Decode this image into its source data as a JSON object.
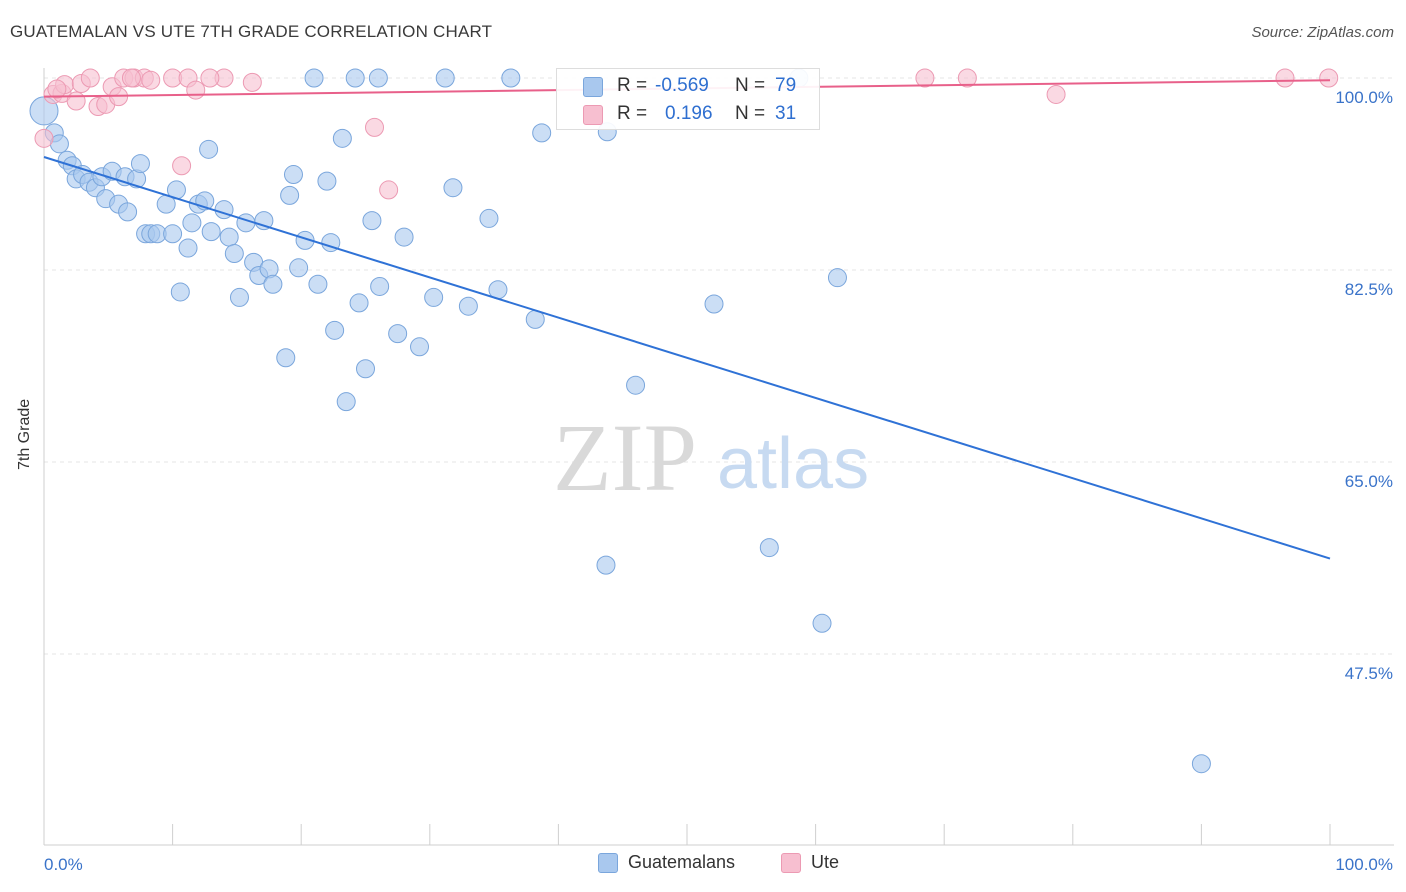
{
  "header": {
    "title": "GUATEMALAN VS UTE 7TH GRADE CORRELATION CHART",
    "source": "Source: ZipAtlas.com"
  },
  "watermark": {
    "part1": "ZIP",
    "part2": "atlas"
  },
  "colors": {
    "blue_fill": "#a9c8ee",
    "blue_stroke": "#7aa6dc",
    "blue_line": "#2f72d6",
    "pink_fill": "#f7bfd0",
    "pink_stroke": "#ec9ab3",
    "pink_line": "#e8608a",
    "tick_label": "#3a73c9",
    "grid": "#e4e4e4"
  },
  "stats": {
    "r_label": "R =",
    "n_label": "N =",
    "rows": [
      {
        "series": "Guatemalans",
        "r": "-0.569",
        "n": "79"
      },
      {
        "series": "Ute",
        "r": "0.196",
        "n": "31"
      }
    ]
  },
  "chart_data": {
    "type": "scatter",
    "title": "GUATEMALAN VS UTE 7TH GRADE CORRELATION CHART",
    "xlabel": "",
    "ylabel": "7th Grade",
    "xlim": [
      0,
      100
    ],
    "ylim": [
      33,
      100.5
    ],
    "x_tick_labels": [
      "0.0%",
      "100.0%"
    ],
    "y_ticks": [
      47.5,
      65.0,
      82.5,
      100.0
    ],
    "y_tick_labels": [
      "47.5%",
      "65.0%",
      "82.5%",
      "100.0%"
    ],
    "grid": "horizontal dashed",
    "legend_position": "bottom-center",
    "series": [
      {
        "name": "Guatemalans",
        "color": "#a9c8ee",
        "trend": {
          "x": [
            0,
            100
          ],
          "y": [
            92.8,
            56.2
          ]
        },
        "points": [
          {
            "x": 0.0,
            "y": 97.0
          },
          {
            "x": 0.8,
            "y": 95.0
          },
          {
            "x": 1.2,
            "y": 94.0
          },
          {
            "x": 1.8,
            "y": 92.5
          },
          {
            "x": 2.2,
            "y": 92.0
          },
          {
            "x": 2.5,
            "y": 90.8
          },
          {
            "x": 3.0,
            "y": 91.2
          },
          {
            "x": 3.5,
            "y": 90.5
          },
          {
            "x": 4.0,
            "y": 90.0
          },
          {
            "x": 4.5,
            "y": 91.0
          },
          {
            "x": 4.8,
            "y": 89.0
          },
          {
            "x": 5.3,
            "y": 91.5
          },
          {
            "x": 5.8,
            "y": 88.5
          },
          {
            "x": 6.3,
            "y": 91.0
          },
          {
            "x": 6.5,
            "y": 87.8
          },
          {
            "x": 7.2,
            "y": 90.8
          },
          {
            "x": 7.5,
            "y": 92.2
          },
          {
            "x": 7.9,
            "y": 85.8
          },
          {
            "x": 8.3,
            "y": 85.8
          },
          {
            "x": 8.8,
            "y": 85.8
          },
          {
            "x": 9.5,
            "y": 88.5
          },
          {
            "x": 10.0,
            "y": 85.8
          },
          {
            "x": 10.3,
            "y": 89.8
          },
          {
            "x": 10.6,
            "y": 80.5
          },
          {
            "x": 11.2,
            "y": 84.5
          },
          {
            "x": 11.5,
            "y": 86.8
          },
          {
            "x": 12.0,
            "y": 88.5
          },
          {
            "x": 12.5,
            "y": 88.8
          },
          {
            "x": 12.8,
            "y": 93.5
          },
          {
            "x": 13.0,
            "y": 86.0
          },
          {
            "x": 14.0,
            "y": 88.0
          },
          {
            "x": 14.4,
            "y": 85.5
          },
          {
            "x": 14.8,
            "y": 84.0
          },
          {
            "x": 15.2,
            "y": 80.0
          },
          {
            "x": 15.7,
            "y": 86.8
          },
          {
            "x": 16.3,
            "y": 83.2
          },
          {
            "x": 16.7,
            "y": 82.0
          },
          {
            "x": 17.1,
            "y": 87.0
          },
          {
            "x": 17.5,
            "y": 82.6
          },
          {
            "x": 17.8,
            "y": 81.2
          },
          {
            "x": 18.8,
            "y": 74.5
          },
          {
            "x": 19.1,
            "y": 89.3
          },
          {
            "x": 19.4,
            "y": 91.2
          },
          {
            "x": 19.8,
            "y": 82.7
          },
          {
            "x": 20.3,
            "y": 85.2
          },
          {
            "x": 21.3,
            "y": 81.2
          },
          {
            "x": 22.0,
            "y": 90.6
          },
          {
            "x": 22.3,
            "y": 85.0
          },
          {
            "x": 22.6,
            "y": 77.0
          },
          {
            "x": 23.2,
            "y": 94.5
          },
          {
            "x": 23.5,
            "y": 70.5
          },
          {
            "x": 24.5,
            "y": 79.5
          },
          {
            "x": 25.0,
            "y": 73.5
          },
          {
            "x": 25.5,
            "y": 87.0
          },
          {
            "x": 26.1,
            "y": 81.0
          },
          {
            "x": 27.5,
            "y": 76.7
          },
          {
            "x": 28.0,
            "y": 85.5
          },
          {
            "x": 29.2,
            "y": 75.5
          },
          {
            "x": 30.3,
            "y": 80.0
          },
          {
            "x": 31.8,
            "y": 90.0
          },
          {
            "x": 33.0,
            "y": 79.2
          },
          {
            "x": 34.6,
            "y": 87.2
          },
          {
            "x": 35.3,
            "y": 80.7
          },
          {
            "x": 38.2,
            "y": 78.0
          },
          {
            "x": 38.7,
            "y": 95.0
          },
          {
            "x": 43.7,
            "y": 55.6
          },
          {
            "x": 43.8,
            "y": 95.1
          },
          {
            "x": 46.0,
            "y": 72.0
          },
          {
            "x": 52.1,
            "y": 79.4
          },
          {
            "x": 56.4,
            "y": 57.2
          },
          {
            "x": 60.5,
            "y": 50.3
          },
          {
            "x": 61.7,
            "y": 81.8
          },
          {
            "x": 90.0,
            "y": 37.5
          },
          {
            "x": 21.0,
            "y": 100.0
          },
          {
            "x": 24.2,
            "y": 100.0
          },
          {
            "x": 26.0,
            "y": 100.0
          },
          {
            "x": 31.2,
            "y": 100.0
          },
          {
            "x": 36.3,
            "y": 100.0
          },
          {
            "x": 58.7,
            "y": 100.0
          }
        ]
      },
      {
        "name": "Ute",
        "color": "#f7bfd0",
        "trend": {
          "x": [
            0,
            100
          ],
          "y": [
            98.3,
            99.8
          ]
        },
        "points": [
          {
            "x": 0.0,
            "y": 94.5
          },
          {
            "x": 0.7,
            "y": 98.5
          },
          {
            "x": 1.4,
            "y": 98.6
          },
          {
            "x": 1.6,
            "y": 99.4
          },
          {
            "x": 2.5,
            "y": 97.9
          },
          {
            "x": 2.9,
            "y": 99.5
          },
          {
            "x": 3.6,
            "y": 100.0
          },
          {
            "x": 4.2,
            "y": 97.4
          },
          {
            "x": 4.8,
            "y": 97.6
          },
          {
            "x": 5.3,
            "y": 99.2
          },
          {
            "x": 5.8,
            "y": 98.3
          },
          {
            "x": 6.2,
            "y": 100.0
          },
          {
            "x": 7.0,
            "y": 100.0
          },
          {
            "x": 7.8,
            "y": 100.0
          },
          {
            "x": 8.3,
            "y": 99.8
          },
          {
            "x": 10.0,
            "y": 100.0
          },
          {
            "x": 10.7,
            "y": 92.0
          },
          {
            "x": 11.2,
            "y": 100.0
          },
          {
            "x": 11.8,
            "y": 98.9
          },
          {
            "x": 14.0,
            "y": 100.0
          },
          {
            "x": 16.2,
            "y": 99.6
          },
          {
            "x": 25.7,
            "y": 95.5
          },
          {
            "x": 26.8,
            "y": 89.8
          },
          {
            "x": 68.5,
            "y": 100.0
          },
          {
            "x": 71.8,
            "y": 100.0
          },
          {
            "x": 78.7,
            "y": 98.5
          },
          {
            "x": 96.5,
            "y": 100.0
          },
          {
            "x": 99.9,
            "y": 100.0
          },
          {
            "x": 12.9,
            "y": 100.0
          },
          {
            "x": 6.8,
            "y": 100.0
          },
          {
            "x": 1.0,
            "y": 99.0
          }
        ]
      }
    ]
  }
}
